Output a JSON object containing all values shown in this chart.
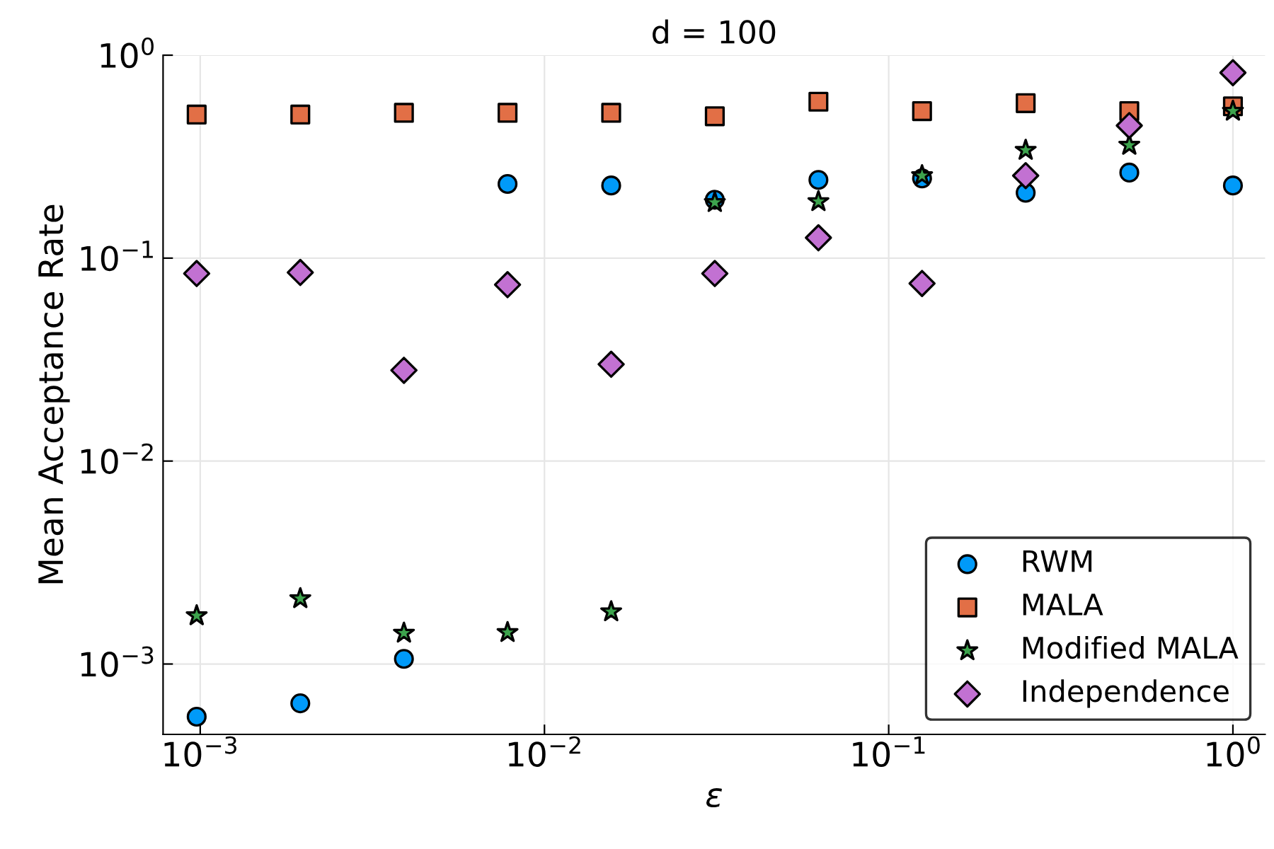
{
  "chart_data": {
    "type": "scatter",
    "title": "d = 100",
    "xlabel": "ε",
    "ylabel": "Mean Acceptance Rate",
    "x": [
      0.0009765625,
      0.001953125,
      0.00390625,
      0.0078125,
      0.015625,
      0.03125,
      0.0625,
      0.125,
      0.25,
      0.5,
      1
    ],
    "series": [
      {
        "name": "RWM",
        "color": "#009af9",
        "marker": "circle",
        "values": [
          0.00055,
          0.00064,
          0.00106,
          0.232,
          0.228,
          0.194,
          0.243,
          0.247,
          0.21,
          0.264,
          0.228
        ]
      },
      {
        "name": "MALA",
        "color": "#e26f46",
        "marker": "square",
        "values": [
          0.51,
          0.51,
          0.52,
          0.52,
          0.52,
          0.5,
          0.59,
          0.53,
          0.58,
          0.53,
          0.56
        ]
      },
      {
        "name": "Modified MALA",
        "color": "#3da44d",
        "marker": "star",
        "values": [
          0.00173,
          0.0021,
          0.00142,
          0.00143,
          0.00181,
          0.188,
          0.19,
          0.255,
          0.34,
          0.36,
          0.53
        ]
      },
      {
        "name": "Independence",
        "color": "#c271d2",
        "marker": "diamond",
        "values": [
          0.084,
          0.085,
          0.028,
          0.074,
          0.03,
          0.084,
          0.126,
          0.075,
          0.255,
          0.45,
          0.82
        ]
      }
    ],
    "log": "xy",
    "xlim": [
      0.00078,
      1.24
    ],
    "ylim": [
      0.00045,
      1
    ],
    "xticks": [
      {
        "value": 0.001,
        "label": "10$^{−3}$"
      },
      {
        "value": 0.01,
        "label": "10$^{−2}$"
      },
      {
        "value": 0.1,
        "label": "10$^{−1}$"
      },
      {
        "value": 1,
        "label": "10$^{0}$"
      }
    ],
    "yticks": [
      {
        "value": 0.001,
        "label": "10$^{−3}$"
      },
      {
        "value": 0.01,
        "label": "10$^{−2}$"
      },
      {
        "value": 0.1,
        "label": "10$^{−1}$"
      },
      {
        "value": 1,
        "label": "10$^{0}$"
      }
    ],
    "grid": true,
    "legend": "bottom right"
  }
}
